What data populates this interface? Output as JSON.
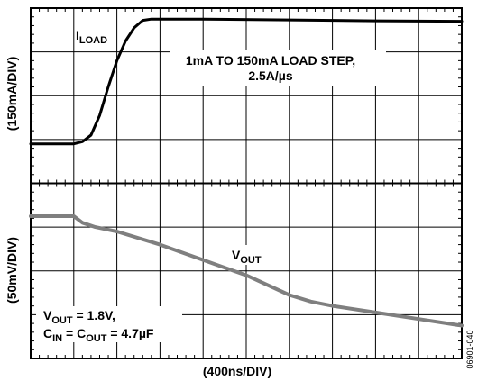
{
  "chart_data": {
    "type": "line",
    "xlabel": "(400ns/DIV)",
    "x_divisions": 10,
    "y_divisions": 8,
    "grid": true,
    "panels": [
      {
        "id": "top",
        "ylabel": "(150mA/DIV)",
        "y_divisions": 4,
        "series": [
          {
            "name": "I_LOAD",
            "color": "#000000",
            "x": [
              0,
              0.5,
              1.0,
              1.2,
              1.4,
              1.6,
              1.8,
              2.0,
              2.2,
              2.4,
              2.6,
              2.8,
              3.0,
              3.4,
              4,
              6,
              8,
              10
            ],
            "y": [
              0.9,
              0.9,
              0.9,
              0.95,
              1.1,
              1.55,
              2.2,
              2.8,
              3.25,
              3.55,
              3.72,
              3.75,
              3.75,
              3.75,
              3.75,
              3.73,
              3.71,
              3.7
            ]
          }
        ],
        "annotations": [
          "1mA TO 150mA LOAD STEP,",
          "2.5A/µs"
        ]
      },
      {
        "id": "bottom",
        "ylabel": "(50mV/DIV)",
        "y_divisions": 4,
        "series": [
          {
            "name": "V_OUT",
            "color": "#7f7f7f",
            "x": [
              0,
              0.5,
              1.0,
              1.2,
              1.5,
              2.0,
              3.0,
              4.0,
              5.0,
              6.0,
              6.5,
              7.0,
              8.0,
              9.0,
              10.0
            ],
            "y": [
              3.25,
              3.25,
              3.25,
              3.1,
              3.0,
              2.9,
              2.6,
              2.25,
              1.9,
              1.45,
              1.3,
              1.2,
              1.05,
              0.9,
              0.75
            ]
          }
        ],
        "annotations": []
      }
    ]
  },
  "labels": {
    "iload_main": "I",
    "iload_sub": "LOAD",
    "step_line1": "1mA TO 150mA LOAD STEP,",
    "step_line2": "2.5A/µs",
    "vout_main": "V",
    "vout_sub": "OUT",
    "cond1_main": "V",
    "cond1_sub": "OUT",
    "cond1_rest": " = 1.8V,",
    "cond2_c1": "C",
    "cond2_in": "IN",
    "cond2_eq": " = C",
    "cond2_out": "OUT",
    "cond2_rest": " = 4.7µF",
    "fig_id": "06901-040"
  }
}
